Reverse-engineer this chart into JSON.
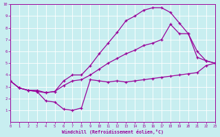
{
  "bg_color": "#c8eef0",
  "line_color": "#990099",
  "grid_color": "#ffffff",
  "xlim": [
    0,
    23
  ],
  "ylim": [
    0,
    10
  ],
  "xticks": [
    0,
    1,
    2,
    3,
    4,
    5,
    6,
    7,
    8,
    9,
    10,
    11,
    12,
    13,
    14,
    15,
    16,
    17,
    18,
    19,
    20,
    21,
    22,
    23
  ],
  "yticks": [
    1,
    2,
    3,
    4,
    5,
    6,
    7,
    8,
    9,
    10
  ],
  "xlabel": "Windchill (Refroidissement éolien,°C)",
  "curve1_x": [
    0,
    1,
    2,
    3,
    4,
    5,
    6,
    7,
    8,
    9,
    10,
    11,
    12,
    13,
    14,
    15,
    16,
    17,
    18,
    19,
    20,
    21,
    22,
    23
  ],
  "curve1_y": [
    3.5,
    2.9,
    2.7,
    2.6,
    1.8,
    1.7,
    1.1,
    1.0,
    1.2,
    3.6,
    3.5,
    3.4,
    3.5,
    3.4,
    3.5,
    3.6,
    3.7,
    3.8,
    3.9,
    4.0,
    4.1,
    4.2,
    4.8,
    5.0
  ],
  "curve2_x": [
    0,
    1,
    2,
    3,
    4,
    5,
    6,
    7,
    8,
    9,
    10,
    11,
    12,
    13,
    14,
    15,
    16,
    17,
    18,
    19,
    20,
    21,
    22,
    23
  ],
  "curve2_y": [
    3.5,
    2.9,
    2.7,
    2.7,
    2.5,
    2.6,
    3.5,
    4.0,
    4.0,
    4.8,
    5.8,
    6.7,
    7.6,
    8.6,
    9.0,
    9.5,
    9.7,
    9.7,
    9.3,
    8.4,
    7.5,
    6.0,
    5.2,
    5.0
  ],
  "curve3_x": [
    0,
    1,
    2,
    3,
    4,
    5,
    6,
    7,
    8,
    9,
    10,
    11,
    12,
    13,
    14,
    15,
    16,
    17,
    18,
    19,
    20,
    21,
    22,
    23
  ],
  "curve3_y": [
    3.5,
    2.9,
    2.7,
    2.6,
    2.5,
    2.6,
    3.1,
    3.5,
    3.6,
    4.0,
    4.5,
    5.0,
    5.4,
    5.8,
    6.1,
    6.5,
    6.7,
    7.0,
    8.3,
    7.5,
    7.5,
    5.5,
    5.2,
    5.0
  ]
}
